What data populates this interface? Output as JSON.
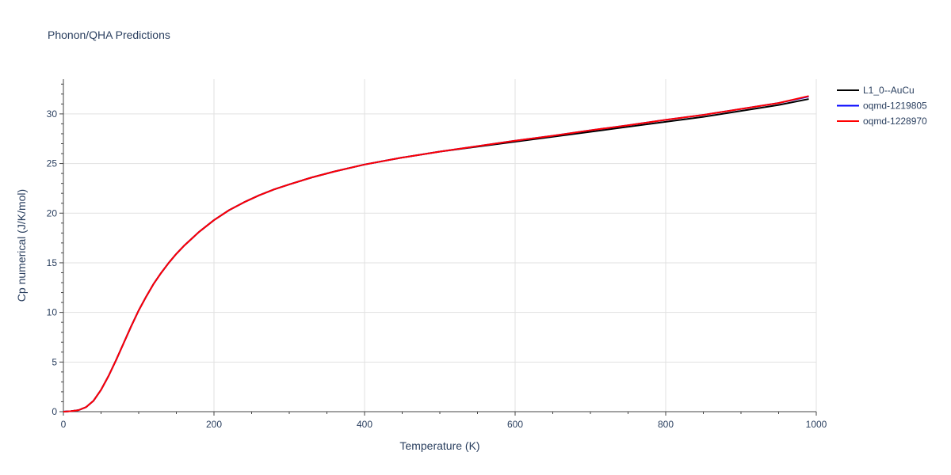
{
  "chart_data": {
    "type": "line",
    "title": "Phonon/QHA Predictions",
    "xlabel": "Temperature (K)",
    "ylabel": "Cp numerical (J/K/mol)",
    "xlim": [
      0,
      1000
    ],
    "ylim": [
      0,
      33.5
    ],
    "x_ticks": [
      0,
      200,
      400,
      600,
      800,
      1000
    ],
    "y_ticks": [
      0,
      5,
      10,
      15,
      20,
      25,
      30
    ],
    "grid": true,
    "legend_position": "top-right",
    "series": [
      {
        "name": "L1_0--AuCu",
        "color": "#000000",
        "x": [
          0,
          10,
          20,
          30,
          40,
          50,
          60,
          70,
          80,
          90,
          100,
          110,
          120,
          130,
          140,
          150,
          160,
          170,
          180,
          190,
          200,
          220,
          240,
          260,
          280,
          300,
          330,
          360,
          400,
          450,
          500,
          550,
          600,
          650,
          700,
          750,
          800,
          850,
          900,
          950,
          990
        ],
        "y": [
          0,
          0.05,
          0.15,
          0.45,
          1.1,
          2.2,
          3.6,
          5.2,
          6.9,
          8.6,
          10.2,
          11.6,
          12.9,
          14.0,
          15.0,
          15.9,
          16.7,
          17.4,
          18.1,
          18.7,
          19.3,
          20.3,
          21.1,
          21.8,
          22.4,
          22.9,
          23.6,
          24.2,
          24.9,
          25.6,
          26.2,
          26.7,
          27.2,
          27.7,
          28.2,
          28.7,
          29.2,
          29.7,
          30.3,
          30.9,
          31.5
        ]
      },
      {
        "name": "oqmd-1219805",
        "color": "#0000ff",
        "x": [
          0,
          10,
          20,
          30,
          40,
          50,
          60,
          70,
          80,
          90,
          100,
          110,
          120,
          130,
          140,
          150,
          160,
          170,
          180,
          190,
          200,
          220,
          240,
          260,
          280,
          300,
          330,
          360,
          400,
          450,
          500,
          550,
          600,
          650,
          700,
          750,
          800,
          850,
          900,
          950,
          990
        ],
        "y": [
          0,
          0.05,
          0.15,
          0.45,
          1.1,
          2.2,
          3.6,
          5.2,
          6.9,
          8.6,
          10.2,
          11.6,
          12.9,
          14.0,
          15.0,
          15.9,
          16.7,
          17.4,
          18.1,
          18.7,
          19.3,
          20.3,
          21.1,
          21.8,
          22.4,
          22.9,
          23.6,
          24.2,
          24.9,
          25.6,
          26.2,
          26.75,
          27.3,
          27.8,
          28.35,
          28.85,
          29.4,
          29.9,
          30.5,
          31.1,
          31.75
        ]
      },
      {
        "name": "oqmd-1228970",
        "color": "#ff0000",
        "x": [
          0,
          10,
          20,
          30,
          40,
          50,
          60,
          70,
          80,
          90,
          100,
          110,
          120,
          130,
          140,
          150,
          160,
          170,
          180,
          190,
          200,
          220,
          240,
          260,
          280,
          300,
          330,
          360,
          400,
          450,
          500,
          550,
          600,
          650,
          700,
          750,
          800,
          850,
          900,
          950,
          990
        ],
        "y": [
          0,
          0.05,
          0.15,
          0.45,
          1.1,
          2.2,
          3.6,
          5.2,
          6.9,
          8.6,
          10.2,
          11.6,
          12.9,
          14.0,
          15.0,
          15.9,
          16.7,
          17.4,
          18.1,
          18.7,
          19.3,
          20.3,
          21.1,
          21.8,
          22.4,
          22.9,
          23.6,
          24.2,
          24.9,
          25.6,
          26.2,
          26.75,
          27.3,
          27.8,
          28.35,
          28.85,
          29.4,
          29.9,
          30.5,
          31.1,
          31.8
        ]
      }
    ]
  }
}
